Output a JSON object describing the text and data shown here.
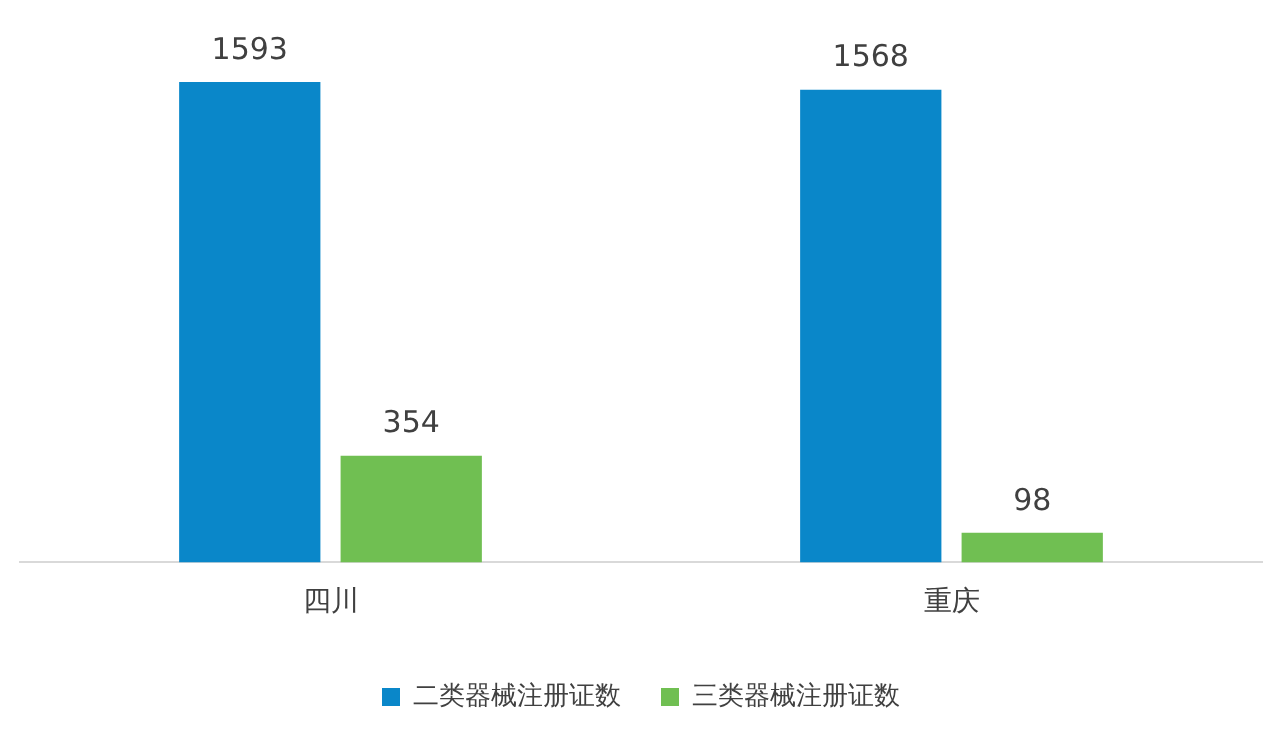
{
  "chart_data": {
    "type": "bar",
    "categories": [
      "四川",
      "重庆"
    ],
    "series": [
      {
        "name": "二类器械注册证数",
        "color": "#0a87c9",
        "values": [
          1593,
          1568
        ]
      },
      {
        "name": "三类器械注册证数",
        "color": "#70bf52",
        "values": [
          354,
          98
        ]
      }
    ],
    "data_labels": true,
    "legend": "bottom",
    "grid": false,
    "tick_labels": "x"
  }
}
